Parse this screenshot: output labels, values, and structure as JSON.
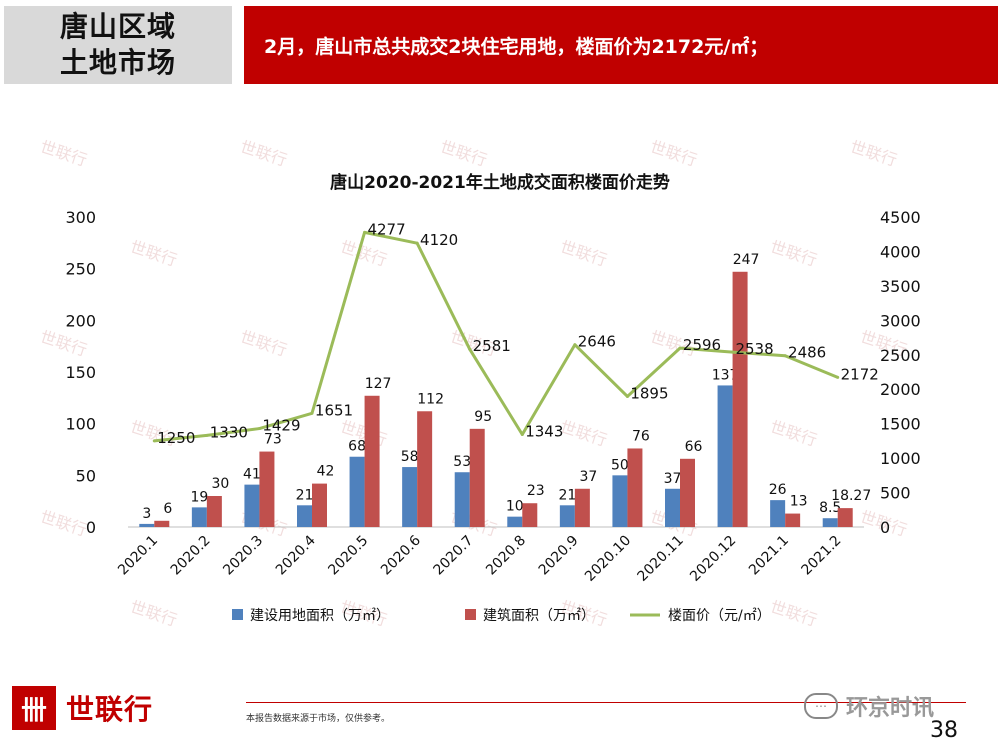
{
  "header": {
    "title_line1": "唐山区域",
    "title_line2": "土地市场",
    "banner": "2月，唐山市总共成交2块住宅用地，楼面价为2172元/㎡；"
  },
  "colors": {
    "bar1": "#4f81bd",
    "bar2": "#c0504d",
    "line": "#9bbb59",
    "brand": "#c00000"
  },
  "chart_data": {
    "type": "bar",
    "title": "唐山2020-2021年土地成交面积楼面价走势",
    "categories": [
      "2020.1",
      "2020.2",
      "2020.3",
      "2020.4",
      "2020.5",
      "2020.6",
      "2020.7",
      "2020.8",
      "2020.9",
      "2020.10",
      "2020.11",
      "2020.12",
      "2021.1",
      "2021.2"
    ],
    "series": [
      {
        "name": "建设用地面积（万㎡）",
        "type": "bar",
        "axis": "left",
        "values": [
          3,
          19,
          41,
          21,
          68,
          58,
          53,
          10,
          21,
          50,
          37,
          137,
          26,
          8.5
        ],
        "labels": [
          "3",
          "19",
          "41",
          "21",
          "68",
          "58",
          "53",
          "10",
          "21",
          "50",
          "37",
          "137",
          "26",
          "8.5"
        ]
      },
      {
        "name": "建筑面积（万㎡）",
        "type": "bar",
        "axis": "left",
        "values": [
          6,
          30,
          73,
          42,
          127,
          112,
          95,
          23,
          37,
          76,
          66,
          247,
          13,
          18.27
        ],
        "labels": [
          "6",
          "30",
          "73",
          "42",
          "127",
          "112",
          "95",
          "23",
          "37",
          "76",
          "66",
          "247",
          "13",
          "18.27"
        ]
      },
      {
        "name": "楼面价（元/㎡）",
        "type": "line",
        "axis": "right",
        "values": [
          1250,
          1330,
          1429,
          1651,
          4277,
          4120,
          2581,
          1343,
          2646,
          1895,
          2596,
          2538,
          2486,
          2172
        ],
        "labels": [
          "1250",
          "1330",
          "1429",
          "1651",
          "4277",
          "4120",
          "2581",
          "1343",
          "2646",
          "1895",
          "2596",
          "2538",
          "2486",
          "2172"
        ]
      }
    ],
    "ylim": [
      0,
      300
    ],
    "y2lim": [
      0,
      4500
    ],
    "yticks": [
      "0",
      "50",
      "100",
      "150",
      "200",
      "250",
      "300"
    ],
    "y2ticks": [
      "0",
      "500",
      "1000",
      "1500",
      "2000",
      "2500",
      "3000",
      "3500",
      "4000",
      "4500"
    ],
    "legend_position": "bottom",
    "grid": false
  },
  "watermark": "世联行",
  "footer": {
    "logo_mark": "卌",
    "logo_text": "世联行",
    "disclaimer": "本报告数据来源于市场，仅供参考。",
    "wechat_icon": "⋯",
    "wechat_text": "环京时讯",
    "page_number": "38"
  }
}
